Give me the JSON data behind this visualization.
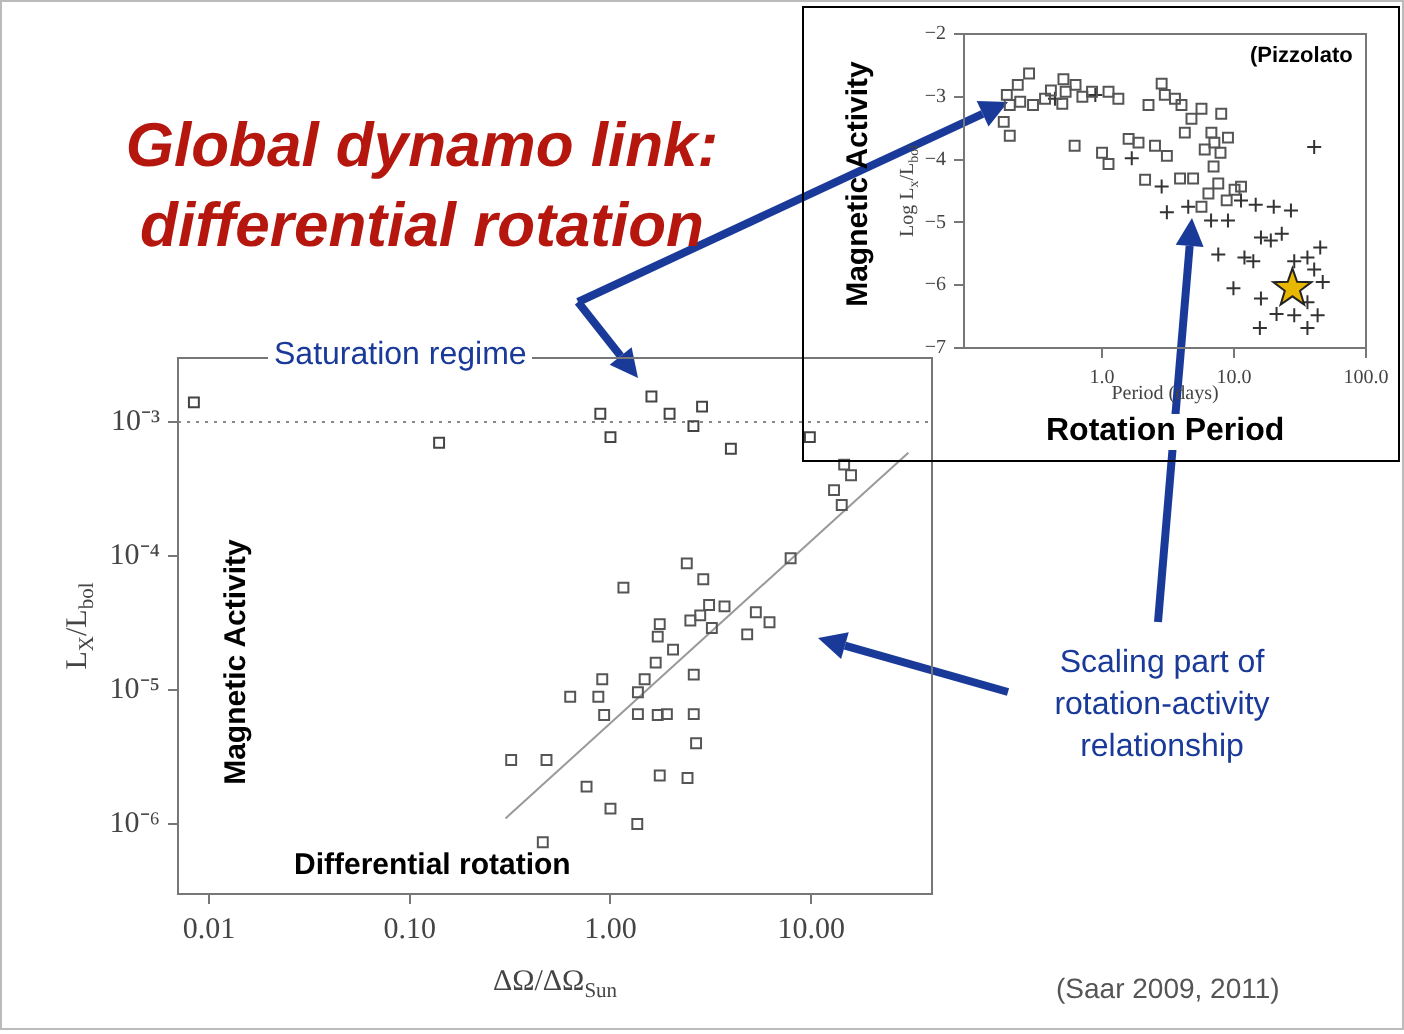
{
  "chart_data": [
    {
      "type": "scatter",
      "title": "Global dynamo link: differential rotation",
      "xlabel": "ΔΩ/ΔΩ$_{Sun}$",
      "ylabel": "L$_{X}$/L$_{bol}$",
      "annotations": [
        "Saturation regime",
        "Scaling part of rotation-activity relationship",
        "Magnetic Activity",
        "Differential rotation",
        "(Saar 2009, 2011)"
      ],
      "log": "xy",
      "marker": "square",
      "xlim": [
        0.007,
        40
      ],
      "ylim": [
        3e-07,
        0.003
      ],
      "xticks": [
        0.01,
        {
          "value": 0.1,
          "label": "0.10"
        },
        {
          "value": 1,
          "label": "1.00"
        },
        {
          "value": 10,
          "label": "10.00"
        }
      ],
      "yticks": [
        {
          "value": 1e-06,
          "label": "10⁻⁶"
        },
        {
          "value": 1e-05,
          "label": "10⁻⁵"
        },
        {
          "value": 0.0001,
          "label": "10⁻⁴"
        },
        {
          "value": 0.001,
          "label": "10⁻³"
        }
      ],
      "ref_lines": [
        {
          "axis": "y",
          "value": 0.001,
          "color": "#888888",
          "line_style": "dotted"
        }
      ],
      "series": [
        {
          "color": "#444444",
          "x": [
            0.0084,
            0.14,
            0.89,
            1.0,
            1.6,
            1.97,
            2.86,
            2.59,
            3.98,
            9.85
          ],
          "values": [
            0.0014,
            0.0007,
            0.00115,
            0.00077,
            0.00155,
            0.00115,
            0.0013,
            0.00093,
            0.00063,
            0.00077
          ]
        },
        {
          "color": "#555555",
          "x": [
            14.6,
            15.8,
            13.0,
            14.2,
            7.9,
            2.4,
            2.9,
            1.16,
            3.1,
            3.7,
            5.3,
            2.8,
            2.5,
            1.76,
            6.2,
            3.2,
            1.72,
            4.8,
            2.05,
            1.68,
            2.6,
            0.91,
            1.48,
            1.37,
            0.63,
            0.87,
            0.93,
            1.37,
            1.72,
            1.91,
            2.6,
            2.67,
            0.32,
            0.48,
            0.76,
            1.76,
            2.42,
            1.0,
            1.36,
            0.46
          ],
          "values": [
            0.00048,
            0.0004,
            0.00031,
            0.00024,
            9.6e-05,
            8.8e-05,
            6.7e-05,
            5.8e-05,
            4.3e-05,
            4.2e-05,
            3.8e-05,
            3.6e-05,
            3.3e-05,
            3.1e-05,
            3.2e-05,
            2.9e-05,
            2.5e-05,
            2.6e-05,
            2e-05,
            1.6e-05,
            1.3e-05,
            1.2e-05,
            1.2e-05,
            9.6e-06,
            8.9e-06,
            8.9e-06,
            6.5e-06,
            6.6e-06,
            6.5e-06,
            6.6e-06,
            6.6e-06,
            4e-06,
            3e-06,
            3e-06,
            1.9e-06,
            2.3e-06,
            2.2e-06,
            1.3e-06,
            1e-06,
            7.3e-07
          ]
        },
        {
          "type": "line",
          "marker": "none",
          "color": "#999999",
          "x": [
            0.3,
            30.5
          ],
          "values": [
            1.1e-06,
            0.00059
          ]
        }
      ]
    },
    {
      "type": "scatter",
      "xlabel": "Period (days)",
      "ylabel": "Log L$_{x}$/L$_{bol}$",
      "annotations": [
        "(Pizzolato",
        "Magnetic Activity",
        "Rotation Period"
      ],
      "log": "x",
      "marker": "square",
      "xlim": [
        0.09,
        100
      ],
      "ylim": [
        -7,
        -2
      ],
      "xticks": [
        {
          "value": 1,
          "label": "1.0"
        },
        {
          "value": 10,
          "label": "10.0"
        },
        {
          "value": 100,
          "label": "100.0"
        }
      ],
      "yticks": [
        {
          "value": -7,
          "label": "−7"
        },
        {
          "value": -6,
          "label": "−6"
        },
        {
          "value": -5,
          "label": "−5"
        },
        {
          "value": -4,
          "label": "−4"
        },
        {
          "value": -3,
          "label": "−3"
        },
        {
          "value": -2,
          "label": "−2"
        }
      ],
      "series": [
        {
          "color": "#555555",
          "x": [
            0.23,
            0.28,
            0.19,
            0.2,
            0.24,
            0.3,
            0.37,
            0.41,
            0.5,
            0.51,
            0.63,
            0.71,
            0.53,
            0.84,
            0.18,
            0.2,
            0.62,
            1.0,
            1.12,
            1.12,
            1.33,
            1.59,
            1.89,
            2.12,
            2.25,
            2.83,
            2.99,
            3.1,
            2.52,
            3.57,
            4.0,
            4.24,
            4.76,
            5.67,
            6.0,
            6.74,
            8.0,
            7.1,
            9.0,
            3.9,
            4.9,
            5.67,
            6.4,
            7.6,
            8.8,
            10.1,
            11.3,
            7.9,
            7.0
          ],
          "values": [
            -2.81,
            -2.63,
            -2.97,
            -3.13,
            -3.08,
            -3.13,
            -3.03,
            -2.9,
            -3.11,
            -2.72,
            -2.81,
            -3.0,
            -2.92,
            -2.92,
            -3.4,
            -3.62,
            -3.78,
            -3.89,
            -4.07,
            -2.92,
            -3.03,
            -3.67,
            -3.73,
            -4.32,
            -3.13,
            -2.79,
            -2.97,
            -3.94,
            -3.78,
            -3.03,
            -3.13,
            -3.57,
            -3.35,
            -3.19,
            -3.84,
            -3.57,
            -3.27,
            -3.73,
            -3.65,
            -4.3,
            -4.3,
            -4.75,
            -4.54,
            -4.38,
            -4.65,
            -4.48,
            -4.43,
            -3.89,
            -4.11
          ]
        },
        {
          "color": "#333333",
          "marker": "cross",
          "x": [
            0.44,
            0.89,
            1.68,
            2.83,
            3.1,
            4.5,
            6.7,
            9,
            11.3,
            14.6,
            16,
            20,
            27,
            12,
            14,
            19,
            23,
            28.6,
            36,
            45,
            16,
            21,
            28.6,
            36,
            43,
            36,
            15.7,
            40.5,
            9.9,
            7.6,
            47,
            40.5
          ],
          "values": [
            -3.03,
            -2.97,
            -3.98,
            -4.43,
            -4.84,
            -4.75,
            -4.97,
            -4.97,
            -4.65,
            -4.72,
            -5.24,
            -4.75,
            -4.81,
            -5.56,
            -5.62,
            -5.29,
            -5.18,
            -5.62,
            -5.56,
            -5.4,
            -6.21,
            -6.46,
            -6.48,
            -6.27,
            -6.48,
            -6.68,
            -6.68,
            -3.8,
            -6.05,
            -5.51,
            -5.95,
            -5.75
          ]
        },
        {
          "color": "#e8b800",
          "marker": "star",
          "x": [
            27.7
          ],
          "values": [
            -6.05
          ]
        }
      ]
    }
  ]
}
